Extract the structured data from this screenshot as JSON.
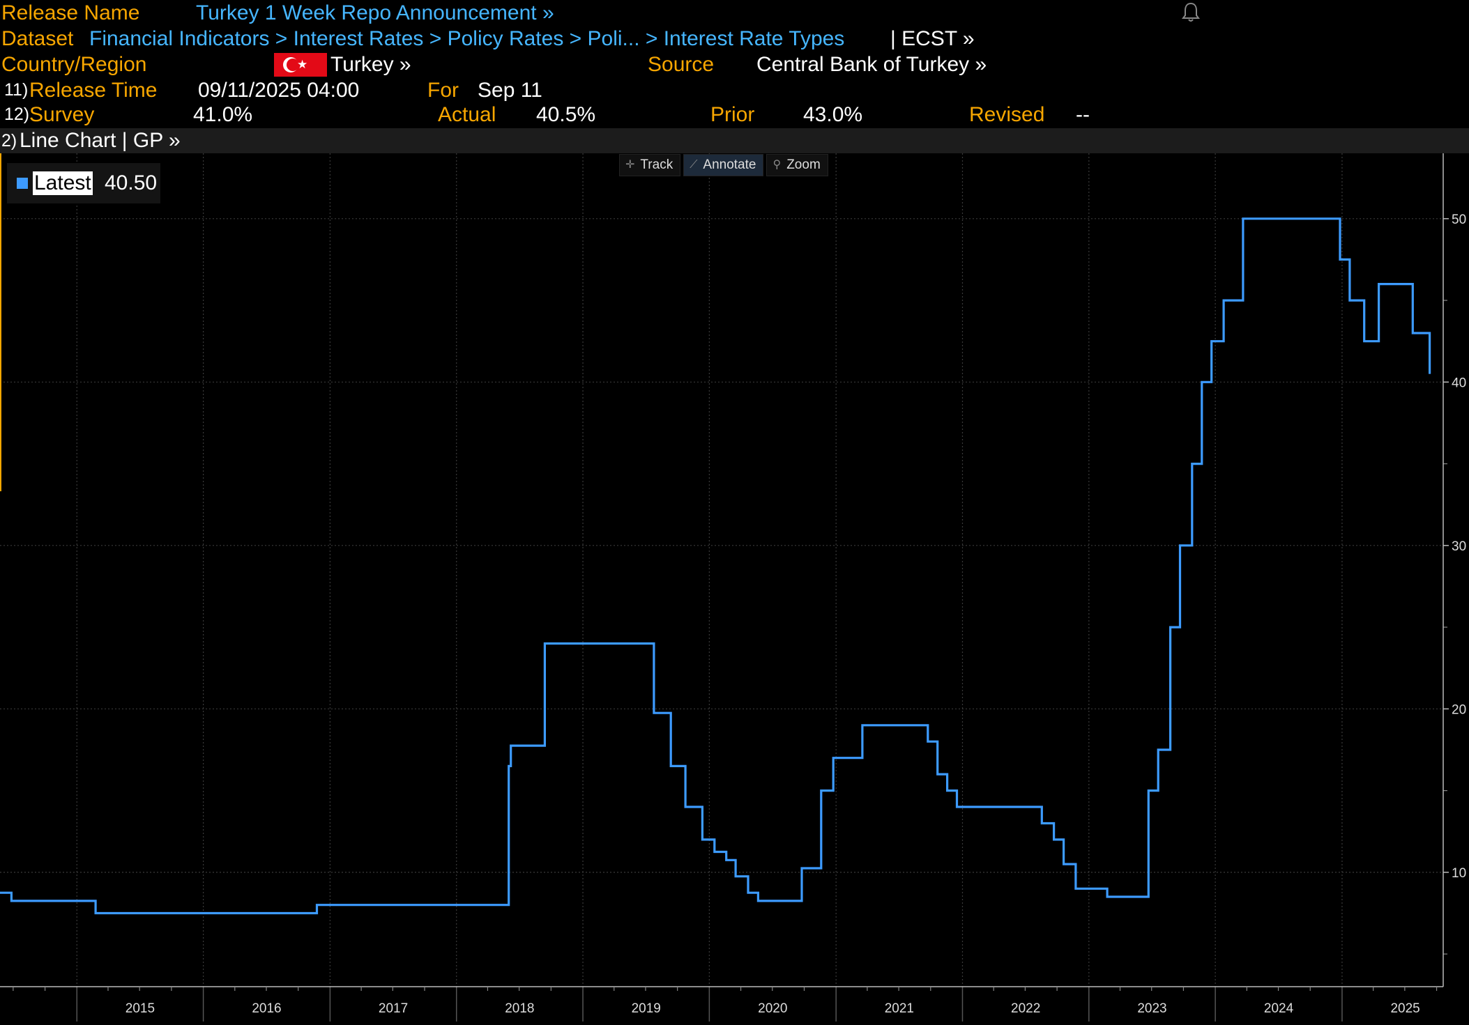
{
  "header": {
    "release_name_label": "Release Name",
    "release_name_value": "Turkey 1 Week Repo Announcement »",
    "dataset_label": "Dataset",
    "dataset_path": "Financial Indicators > Interest Rates > Policy Rates > Poli... > Interest Rate Types",
    "dataset_suffix": "| ECST »",
    "country_label": "Country/Region",
    "country_value": "Turkey »",
    "source_label": "Source",
    "source_value": "Central Bank of Turkey »",
    "release_time_num": "11)",
    "release_time_label": "Release Time",
    "release_time_value": "09/11/2025 04:00",
    "for_label": "For",
    "for_value": "Sep 11",
    "survey_num": "12)",
    "survey_label": "Survey",
    "survey_value": "41.0%",
    "actual_label": "Actual",
    "actual_value": "40.5%",
    "prior_label": "Prior",
    "prior_value": "43.0%",
    "revised_label": "Revised",
    "revised_value": "--"
  },
  "chart_header": {
    "num": "2)",
    "text": "Line Chart | GP »"
  },
  "toolbar": {
    "track": "Track",
    "annotate": "Annotate",
    "zoom": "Zoom"
  },
  "legend": {
    "name": "Latest",
    "value": "40.50"
  },
  "colors": {
    "label": "#f7a600",
    "link": "#46b6ff",
    "series": "#3d9bff",
    "background": "#000000"
  },
  "icons": [
    "bell-icon",
    "track-icon",
    "annotate-icon",
    "zoom-icon"
  ],
  "chart_data": {
    "type": "line",
    "series": [
      {
        "name": "Latest",
        "points": [
          [
            "2014-05-24",
            8.75
          ],
          [
            "2014-06-26",
            8.25
          ],
          [
            "2015-02-24",
            7.5
          ],
          [
            "2016-06-21",
            7.5
          ],
          [
            "2016-11-24",
            8.0
          ],
          [
            "2018-05-23",
            8.0
          ],
          [
            "2018-06-01",
            16.5
          ],
          [
            "2018-06-07",
            17.75
          ],
          [
            "2018-09-13",
            24.0
          ],
          [
            "2019-07-25",
            24.0
          ],
          [
            "2019-07-25",
            19.75
          ],
          [
            "2019-09-12",
            16.5
          ],
          [
            "2019-10-24",
            14.0
          ],
          [
            "2019-12-12",
            12.0
          ],
          [
            "2020-01-16",
            11.25
          ],
          [
            "2020-02-19",
            10.75
          ],
          [
            "2020-03-17",
            9.75
          ],
          [
            "2020-04-22",
            8.75
          ],
          [
            "2020-05-21",
            8.25
          ],
          [
            "2020-09-24",
            10.25
          ],
          [
            "2020-11-19",
            15.0
          ],
          [
            "2020-12-24",
            17.0
          ],
          [
            "2021-03-18",
            19.0
          ],
          [
            "2021-09-23",
            18.0
          ],
          [
            "2021-10-21",
            16.0
          ],
          [
            "2021-11-18",
            15.0
          ],
          [
            "2021-12-16",
            14.0
          ],
          [
            "2022-08-18",
            13.0
          ],
          [
            "2022-09-22",
            12.0
          ],
          [
            "2022-10-20",
            10.5
          ],
          [
            "2022-11-24",
            9.0
          ],
          [
            "2023-02-23",
            8.5
          ],
          [
            "2023-06-22",
            15.0
          ],
          [
            "2023-07-20",
            17.5
          ],
          [
            "2023-08-24",
            25.0
          ],
          [
            "2023-09-21",
            30.0
          ],
          [
            "2023-10-26",
            35.0
          ],
          [
            "2023-11-23",
            40.0
          ],
          [
            "2023-12-21",
            42.5
          ],
          [
            "2024-01-25",
            45.0
          ],
          [
            "2024-03-21",
            50.0
          ],
          [
            "2024-12-26",
            47.5
          ],
          [
            "2025-01-23",
            45.0
          ],
          [
            "2025-03-06",
            42.5
          ],
          [
            "2025-04-17",
            46.0
          ],
          [
            "2025-07-24",
            43.0
          ],
          [
            "2025-09-11",
            40.5
          ]
        ]
      }
    ],
    "x_ticks": [
      "2015",
      "2016",
      "2017",
      "2018",
      "2019",
      "2020",
      "2021",
      "2022",
      "2023",
      "2024",
      "2025"
    ],
    "y_ticks": [
      10,
      20,
      30,
      40,
      50
    ],
    "ylim": [
      3,
      54
    ],
    "xlim": [
      "2014-05-24",
      "2025-10-20"
    ],
    "grid": true
  }
}
